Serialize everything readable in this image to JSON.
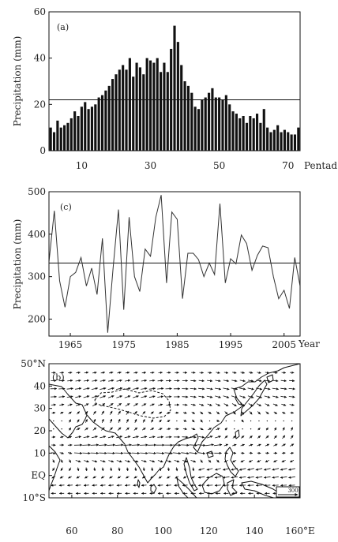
{
  "chart_data": [
    {
      "type": "bar",
      "panel_label": "(a)",
      "ylabel": "Precipitation (mm)",
      "xlabel": "Pentad",
      "xlim": [
        0.5,
        73.5
      ],
      "ylim": [
        0,
        60
      ],
      "yticks": [
        0,
        20,
        40,
        60
      ],
      "xticks": [
        10,
        30,
        50,
        70
      ],
      "reference_line": 22,
      "categories": [
        1,
        2,
        3,
        4,
        5,
        6,
        7,
        8,
        9,
        10,
        11,
        12,
        13,
        14,
        15,
        16,
        17,
        18,
        19,
        20,
        21,
        22,
        23,
        24,
        25,
        26,
        27,
        28,
        29,
        30,
        31,
        32,
        33,
        34,
        35,
        36,
        37,
        38,
        39,
        40,
        41,
        42,
        43,
        44,
        45,
        46,
        47,
        48,
        49,
        50,
        51,
        52,
        53,
        54,
        55,
        56,
        57,
        58,
        59,
        60,
        61,
        62,
        63,
        64,
        65,
        66,
        67,
        68,
        69,
        70,
        71,
        72,
        73
      ],
      "values": [
        10,
        8,
        13,
        10,
        11,
        12,
        14,
        17,
        15,
        19,
        21,
        18,
        19,
        20,
        23,
        24,
        26,
        28,
        31,
        33,
        35,
        37,
        35,
        40,
        32,
        38,
        36,
        33,
        40,
        39,
        38,
        40,
        34,
        38,
        34,
        44,
        54,
        47,
        37,
        30,
        28,
        25,
        19,
        18,
        22,
        23,
        25,
        27,
        23,
        23,
        22,
        24,
        20,
        17,
        16,
        14,
        15,
        12,
        15,
        14,
        16,
        12,
        18,
        10,
        8,
        9,
        11,
        8,
        9,
        8,
        7,
        7,
        10
      ]
    },
    {
      "type": "line",
      "panel_label": "(c)",
      "ylabel": "Precipitation (mm)",
      "xlabel": "Year",
      "xlim": [
        1961,
        2008
      ],
      "ylim": [
        160,
        500
      ],
      "yticks": [
        200,
        300,
        400,
        500
      ],
      "xticks": [
        1965,
        1975,
        1985,
        1995,
        2005
      ],
      "reference_line": 332,
      "x": [
        1961,
        1962,
        1963,
        1964,
        1965,
        1966,
        1967,
        1968,
        1969,
        1970,
        1971,
        1972,
        1973,
        1974,
        1975,
        1976,
        1977,
        1978,
        1979,
        1980,
        1981,
        1982,
        1983,
        1984,
        1985,
        1986,
        1987,
        1988,
        1989,
        1990,
        1991,
        1992,
        1993,
        1994,
        1995,
        1996,
        1997,
        1998,
        1999,
        2000,
        2001,
        2002,
        2003,
        2004,
        2005,
        2006,
        2007,
        2008
      ],
      "y": [
        335,
        455,
        290,
        228,
        300,
        310,
        345,
        278,
        320,
        258,
        390,
        168,
        320,
        458,
        222,
        440,
        300,
        265,
        365,
        348,
        440,
        492,
        285,
        452,
        435,
        248,
        355,
        355,
        340,
        300,
        332,
        305,
        472,
        285,
        342,
        330,
        398,
        378,
        315,
        350,
        372,
        368,
        300,
        248,
        268,
        225,
        345,
        278
      ]
    },
    {
      "type": "vector-field",
      "panel_label": "(b)",
      "xticks": [
        "60",
        "80",
        "100",
        "120",
        "140",
        "160°E"
      ],
      "yticks": [
        "10°S",
        "EQ",
        "10",
        "20",
        "30",
        "40",
        "50°N"
      ],
      "xlim": [
        50,
        160
      ],
      "ylim": [
        -10,
        50
      ],
      "reference_vector": "300"
    }
  ]
}
